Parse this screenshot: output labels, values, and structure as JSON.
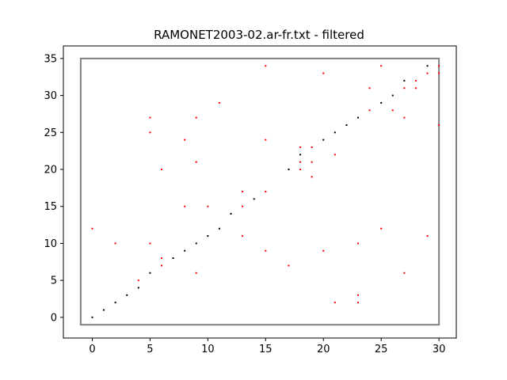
{
  "chart_data": {
    "type": "scatter",
    "title": "RAMONET2003-02.ar-fr.txt - filtered",
    "xlabel": "",
    "ylabel": "",
    "xlim": [
      -2.5,
      31.5
    ],
    "ylim": [
      -2.8,
      36.7
    ],
    "x_ticks": [
      0,
      5,
      10,
      15,
      20,
      25,
      30
    ],
    "y_ticks": [
      0,
      5,
      10,
      15,
      20,
      25,
      30,
      35
    ],
    "x_tick_labels": [
      "0",
      "5",
      "10",
      "15",
      "20",
      "25",
      "30"
    ],
    "y_tick_labels": [
      "0",
      "5",
      "10",
      "15",
      "20",
      "25",
      "30",
      "35"
    ],
    "grid": false,
    "legend": "none",
    "box": {
      "x0": -1,
      "x1": 30,
      "y0": -1,
      "y1": 35,
      "color": "#808080"
    },
    "series": [
      {
        "color": "#000000",
        "points": [
          [
            0,
            0
          ],
          [
            1,
            1
          ],
          [
            2,
            2
          ],
          [
            3,
            3
          ],
          [
            4,
            4
          ],
          [
            5,
            6
          ],
          [
            7,
            8
          ],
          [
            8,
            9
          ],
          [
            9,
            10
          ],
          [
            10,
            11
          ],
          [
            11,
            12
          ],
          [
            12,
            14
          ],
          [
            14,
            16
          ],
          [
            17,
            20
          ],
          [
            18,
            22
          ],
          [
            20,
            24
          ],
          [
            21,
            25
          ],
          [
            22,
            26
          ],
          [
            23,
            27
          ],
          [
            25,
            29
          ],
          [
            26,
            30
          ],
          [
            27,
            32
          ],
          [
            29,
            34
          ]
        ]
      },
      {
        "color": "#ff0000",
        "points": [
          [
            0,
            12
          ],
          [
            2,
            10
          ],
          [
            4,
            5
          ],
          [
            5,
            10
          ],
          [
            5,
            25
          ],
          [
            5,
            27
          ],
          [
            6,
            7
          ],
          [
            6,
            8
          ],
          [
            6,
            20
          ],
          [
            8,
            15
          ],
          [
            8,
            24
          ],
          [
            9,
            6
          ],
          [
            9,
            21
          ],
          [
            9,
            27
          ],
          [
            10,
            15
          ],
          [
            11,
            29
          ],
          [
            13,
            11
          ],
          [
            13,
            15
          ],
          [
            13,
            17
          ],
          [
            15,
            9
          ],
          [
            15,
            17
          ],
          [
            15,
            24
          ],
          [
            15,
            34
          ],
          [
            17,
            7
          ],
          [
            18,
            20
          ],
          [
            18,
            21
          ],
          [
            18,
            23
          ],
          [
            19,
            19
          ],
          [
            19,
            21
          ],
          [
            19,
            23
          ],
          [
            20,
            9
          ],
          [
            20,
            33
          ],
          [
            21,
            2
          ],
          [
            21,
            22
          ],
          [
            23,
            2
          ],
          [
            23,
            3
          ],
          [
            23,
            10
          ],
          [
            24,
            28
          ],
          [
            24,
            31
          ],
          [
            25,
            12
          ],
          [
            25,
            34
          ],
          [
            26,
            28
          ],
          [
            27,
            6
          ],
          [
            27,
            27
          ],
          [
            27,
            31
          ],
          [
            28,
            31
          ],
          [
            28,
            32
          ],
          [
            29,
            11
          ],
          [
            29,
            33
          ],
          [
            30,
            26
          ],
          [
            30,
            33
          ],
          [
            30,
            34
          ]
        ]
      }
    ]
  }
}
